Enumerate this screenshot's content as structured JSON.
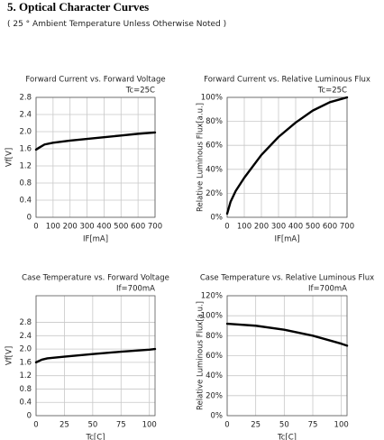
{
  "title": "5. Optical Character Curves",
  "note": "( 25 ° Ambient Temperature Unless Otherwise Noted )",
  "chart_data": [
    {
      "type": "line",
      "title": "Forward Current vs. Forward Voltage",
      "subtitle": "Tc=25C",
      "x_label": "IF[mA]",
      "y_label": "Vf[V]",
      "color": "#000000",
      "grid": true,
      "x": [
        0,
        20,
        50,
        100,
        200,
        300,
        400,
        500,
        600,
        700
      ],
      "values": [
        1.58,
        1.63,
        1.7,
        1.74,
        1.79,
        1.83,
        1.87,
        1.91,
        1.95,
        1.98
      ],
      "xlim": [
        0,
        700
      ],
      "xticks": [
        0,
        100,
        200,
        300,
        400,
        500,
        600,
        700
      ],
      "ylim": [
        0,
        2.8
      ],
      "yticks": [
        0,
        0.4,
        0.8,
        1.2,
        1.6,
        {
          "value": 2,
          "label": "2.0"
        },
        2.4,
        2.8
      ]
    },
    {
      "type": "line",
      "title": "Forward Current vs. Relative Luminous Flux",
      "subtitle": "Tc=25C",
      "x_label": "IF[mA]",
      "y_label": "Relative Luminous Flux[a.u.]",
      "color": "#000000",
      "grid": true,
      "x": [
        0,
        20,
        50,
        100,
        200,
        300,
        400,
        500,
        600,
        700
      ],
      "values": [
        3,
        13,
        22,
        33,
        52,
        67,
        79,
        89,
        96,
        100
      ],
      "xlim": [
        0,
        700
      ],
      "xticks": [
        0,
        100,
        200,
        300,
        400,
        500,
        600,
        700
      ],
      "ylim": [
        0,
        100
      ],
      "yticks": [
        {
          "value": 0,
          "label": "0%"
        },
        {
          "value": 20,
          "label": "20%"
        },
        {
          "value": 40,
          "label": "40%"
        },
        {
          "value": 60,
          "label": "60%"
        },
        {
          "value": 80,
          "label": "80%"
        },
        {
          "value": 100,
          "label": "100%"
        }
      ]
    },
    {
      "type": "line",
      "title": "Case Temperature vs. Forward Voltage",
      "subtitle": "If=700mA",
      "x_label": "Tc[C]",
      "y_label": "Vf[V]",
      "color": "#000000",
      "grid": true,
      "x": [
        0,
        5,
        10,
        25,
        50,
        75,
        100,
        105
      ],
      "values": [
        1.6,
        1.68,
        1.72,
        1.77,
        1.85,
        1.92,
        1.98,
        2.0
      ],
      "xlim": [
        0,
        105
      ],
      "xticks": [
        0,
        25,
        50,
        75,
        100
      ],
      "ylim": [
        0,
        3.6
      ],
      "yticks": [
        0,
        0.4,
        0.8,
        1.2,
        1.6,
        {
          "value": 2,
          "label": "2.0"
        },
        2.4,
        2.8
      ]
    },
    {
      "type": "line",
      "title": "Case Temperature vs. Relative Luminous Flux",
      "subtitle": "If=700mA",
      "x_label": "Tc[C]",
      "y_label": "Relative Luminous Flux[a.u.]",
      "color": "#000000",
      "grid": true,
      "x": [
        0,
        25,
        50,
        75,
        100,
        105
      ],
      "values": [
        92,
        90,
        86,
        80,
        72,
        70
      ],
      "xlim": [
        0,
        105
      ],
      "xticks": [
        0,
        25,
        50,
        75,
        100
      ],
      "ylim": [
        0,
        120
      ],
      "yticks": [
        {
          "value": 0,
          "label": "0%"
        },
        {
          "value": 20,
          "label": "20%"
        },
        {
          "value": 40,
          "label": "40%"
        },
        {
          "value": 60,
          "label": "60%"
        },
        {
          "value": 80,
          "label": "80%"
        },
        {
          "value": 100,
          "label": "100%"
        },
        {
          "value": 120,
          "label": "120%"
        }
      ]
    }
  ]
}
